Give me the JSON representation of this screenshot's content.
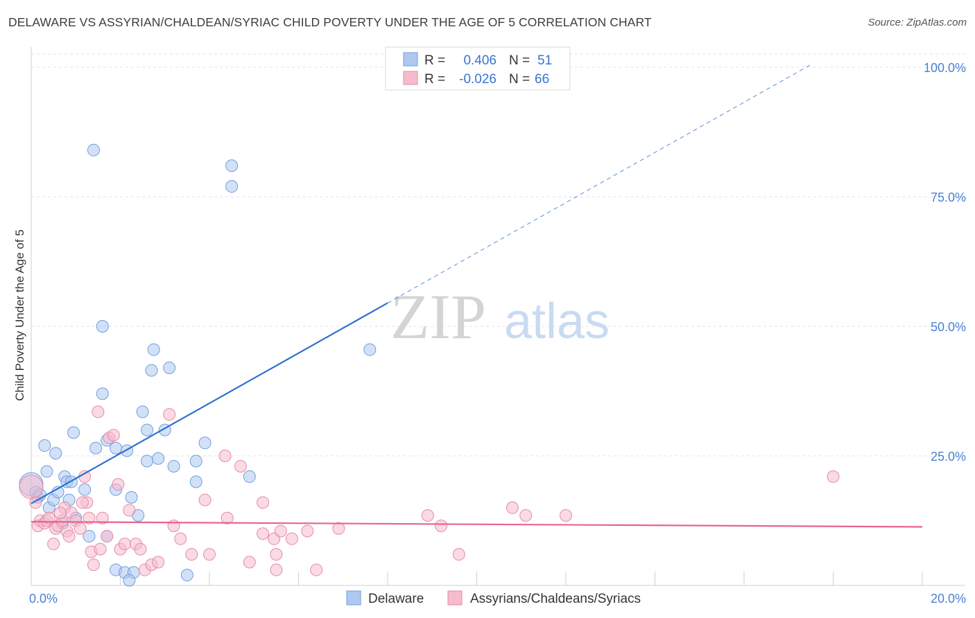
{
  "chart_data": {
    "type": "scatter",
    "title": "DELAWARE VS ASSYRIAN/CHALDEAN/SYRIAC CHILD POVERTY UNDER THE AGE OF 5 CORRELATION CHART",
    "source": "Source: ZipAtlas.com",
    "xlabel": "",
    "ylabel": "Child Poverty Under the Age of 5",
    "xlim": [
      0,
      20
    ],
    "ylim": [
      0,
      105
    ],
    "x_tick_labels": [
      {
        "value": 0,
        "label": "0.0%"
      },
      {
        "value": 20,
        "label": "20.0%"
      }
    ],
    "y_tick_labels": [
      {
        "value": 25,
        "label": "25.0%"
      },
      {
        "value": 50,
        "label": "50.0%"
      },
      {
        "value": 75,
        "label": "75.0%"
      },
      {
        "value": 100,
        "label": "100.0%"
      }
    ],
    "watermark": {
      "zip": "ZIP",
      "atlas": "atlas"
    },
    "stats_legend": {
      "r_label": "R =",
      "n_label": "N =",
      "rows": [
        {
          "r": "0.406",
          "n": "51"
        },
        {
          "r": "-0.026",
          "n": "66"
        }
      ]
    },
    "series": [
      {
        "name": "Delaware",
        "color": "#aec8f0",
        "stroke": "#6e9de0",
        "trend_color": "#2f6fd0",
        "trend": {
          "x0": 0,
          "y0": 15.8,
          "x1": 8,
          "y1": 54.5,
          "x_dash_end": 17.5,
          "y_dash_end": 100.5
        },
        "points": [
          [
            0.0,
            19.5
          ],
          [
            0.1,
            18.0
          ],
          [
            0.15,
            17.0
          ],
          [
            0.2,
            17.5
          ],
          [
            0.3,
            27.0
          ],
          [
            0.35,
            22.0
          ],
          [
            0.4,
            15.0
          ],
          [
            0.5,
            16.5
          ],
          [
            0.55,
            25.5
          ],
          [
            0.6,
            18.0
          ],
          [
            0.7,
            12.0
          ],
          [
            0.75,
            21.0
          ],
          [
            0.8,
            20.0
          ],
          [
            0.85,
            16.5
          ],
          [
            0.9,
            20.0
          ],
          [
            0.95,
            29.5
          ],
          [
            1.0,
            13.0
          ],
          [
            1.2,
            18.5
          ],
          [
            1.4,
            84.0
          ],
          [
            1.45,
            26.5
          ],
          [
            1.6,
            50.0
          ],
          [
            1.6,
            37.0
          ],
          [
            1.7,
            28.0
          ],
          [
            1.9,
            26.5
          ],
          [
            1.9,
            18.5
          ],
          [
            1.9,
            3.0
          ],
          [
            2.1,
            2.5
          ],
          [
            2.15,
            26.0
          ],
          [
            2.25,
            17.0
          ],
          [
            2.3,
            2.5
          ],
          [
            2.4,
            13.5
          ],
          [
            2.5,
            33.5
          ],
          [
            2.6,
            24.0
          ],
          [
            2.6,
            30.0
          ],
          [
            2.7,
            41.5
          ],
          [
            2.75,
            45.5
          ],
          [
            2.85,
            24.5
          ],
          [
            3.0,
            30.0
          ],
          [
            3.1,
            42.0
          ],
          [
            3.2,
            23.0
          ],
          [
            3.5,
            2.0
          ],
          [
            3.7,
            24.0
          ],
          [
            3.7,
            20.0
          ],
          [
            3.9,
            27.5
          ],
          [
            4.5,
            81.0
          ],
          [
            4.5,
            77.0
          ],
          [
            4.9,
            21.0
          ],
          [
            7.6,
            45.5
          ],
          [
            1.3,
            9.5
          ],
          [
            1.7,
            9.5
          ],
          [
            2.2,
            1.0
          ]
        ]
      },
      {
        "name": "Assyrians/Chaldeans/Syriacs",
        "color": "#f6bccd",
        "stroke": "#e78aa6",
        "trend_color": "#e8638e",
        "trend": {
          "x0": 0,
          "y0": 12.3,
          "x1": 20,
          "y1": 11.3
        },
        "points": [
          [
            0.0,
            19.0
          ],
          [
            0.1,
            16.0
          ],
          [
            0.15,
            11.5
          ],
          [
            0.2,
            12.5
          ],
          [
            0.3,
            12.0
          ],
          [
            0.35,
            12.5
          ],
          [
            0.4,
            13.0
          ],
          [
            0.5,
            8.0
          ],
          [
            0.55,
            11.0
          ],
          [
            0.6,
            11.5
          ],
          [
            0.7,
            12.5
          ],
          [
            0.75,
            15.0
          ],
          [
            0.8,
            10.5
          ],
          [
            0.85,
            9.5
          ],
          [
            0.9,
            14.0
          ],
          [
            1.0,
            12.5
          ],
          [
            1.1,
            11.0
          ],
          [
            1.2,
            21.0
          ],
          [
            1.25,
            16.0
          ],
          [
            1.3,
            13.0
          ],
          [
            1.35,
            6.5
          ],
          [
            1.4,
            4.0
          ],
          [
            1.5,
            33.5
          ],
          [
            1.55,
            7.0
          ],
          [
            1.6,
            13.0
          ],
          [
            1.7,
            9.5
          ],
          [
            1.75,
            28.5
          ],
          [
            1.85,
            29.0
          ],
          [
            1.95,
            19.5
          ],
          [
            2.0,
            7.0
          ],
          [
            2.1,
            8.0
          ],
          [
            2.2,
            14.5
          ],
          [
            2.35,
            8.0
          ],
          [
            2.45,
            7.0
          ],
          [
            2.55,
            3.0
          ],
          [
            2.7,
            4.0
          ],
          [
            2.85,
            4.5
          ],
          [
            3.1,
            33.0
          ],
          [
            3.2,
            11.5
          ],
          [
            3.35,
            9.0
          ],
          [
            3.6,
            6.0
          ],
          [
            3.9,
            16.5
          ],
          [
            4.0,
            6.0
          ],
          [
            4.4,
            13.0
          ],
          [
            4.35,
            25.0
          ],
          [
            4.7,
            23.0
          ],
          [
            4.9,
            4.5
          ],
          [
            5.2,
            16.0
          ],
          [
            5.2,
            10.0
          ],
          [
            5.45,
            9.0
          ],
          [
            5.5,
            6.0
          ],
          [
            5.5,
            3.0
          ],
          [
            5.6,
            10.5
          ],
          [
            5.85,
            9.0
          ],
          [
            6.2,
            10.5
          ],
          [
            6.4,
            3.0
          ],
          [
            6.9,
            11.0
          ],
          [
            8.9,
            13.5
          ],
          [
            9.2,
            11.5
          ],
          [
            9.6,
            6.0
          ],
          [
            10.8,
            15.0
          ],
          [
            11.1,
            13.5
          ],
          [
            12.0,
            13.5
          ],
          [
            18.0,
            21.0
          ],
          [
            1.15,
            16.0
          ],
          [
            0.65,
            14.0
          ]
        ]
      }
    ]
  }
}
